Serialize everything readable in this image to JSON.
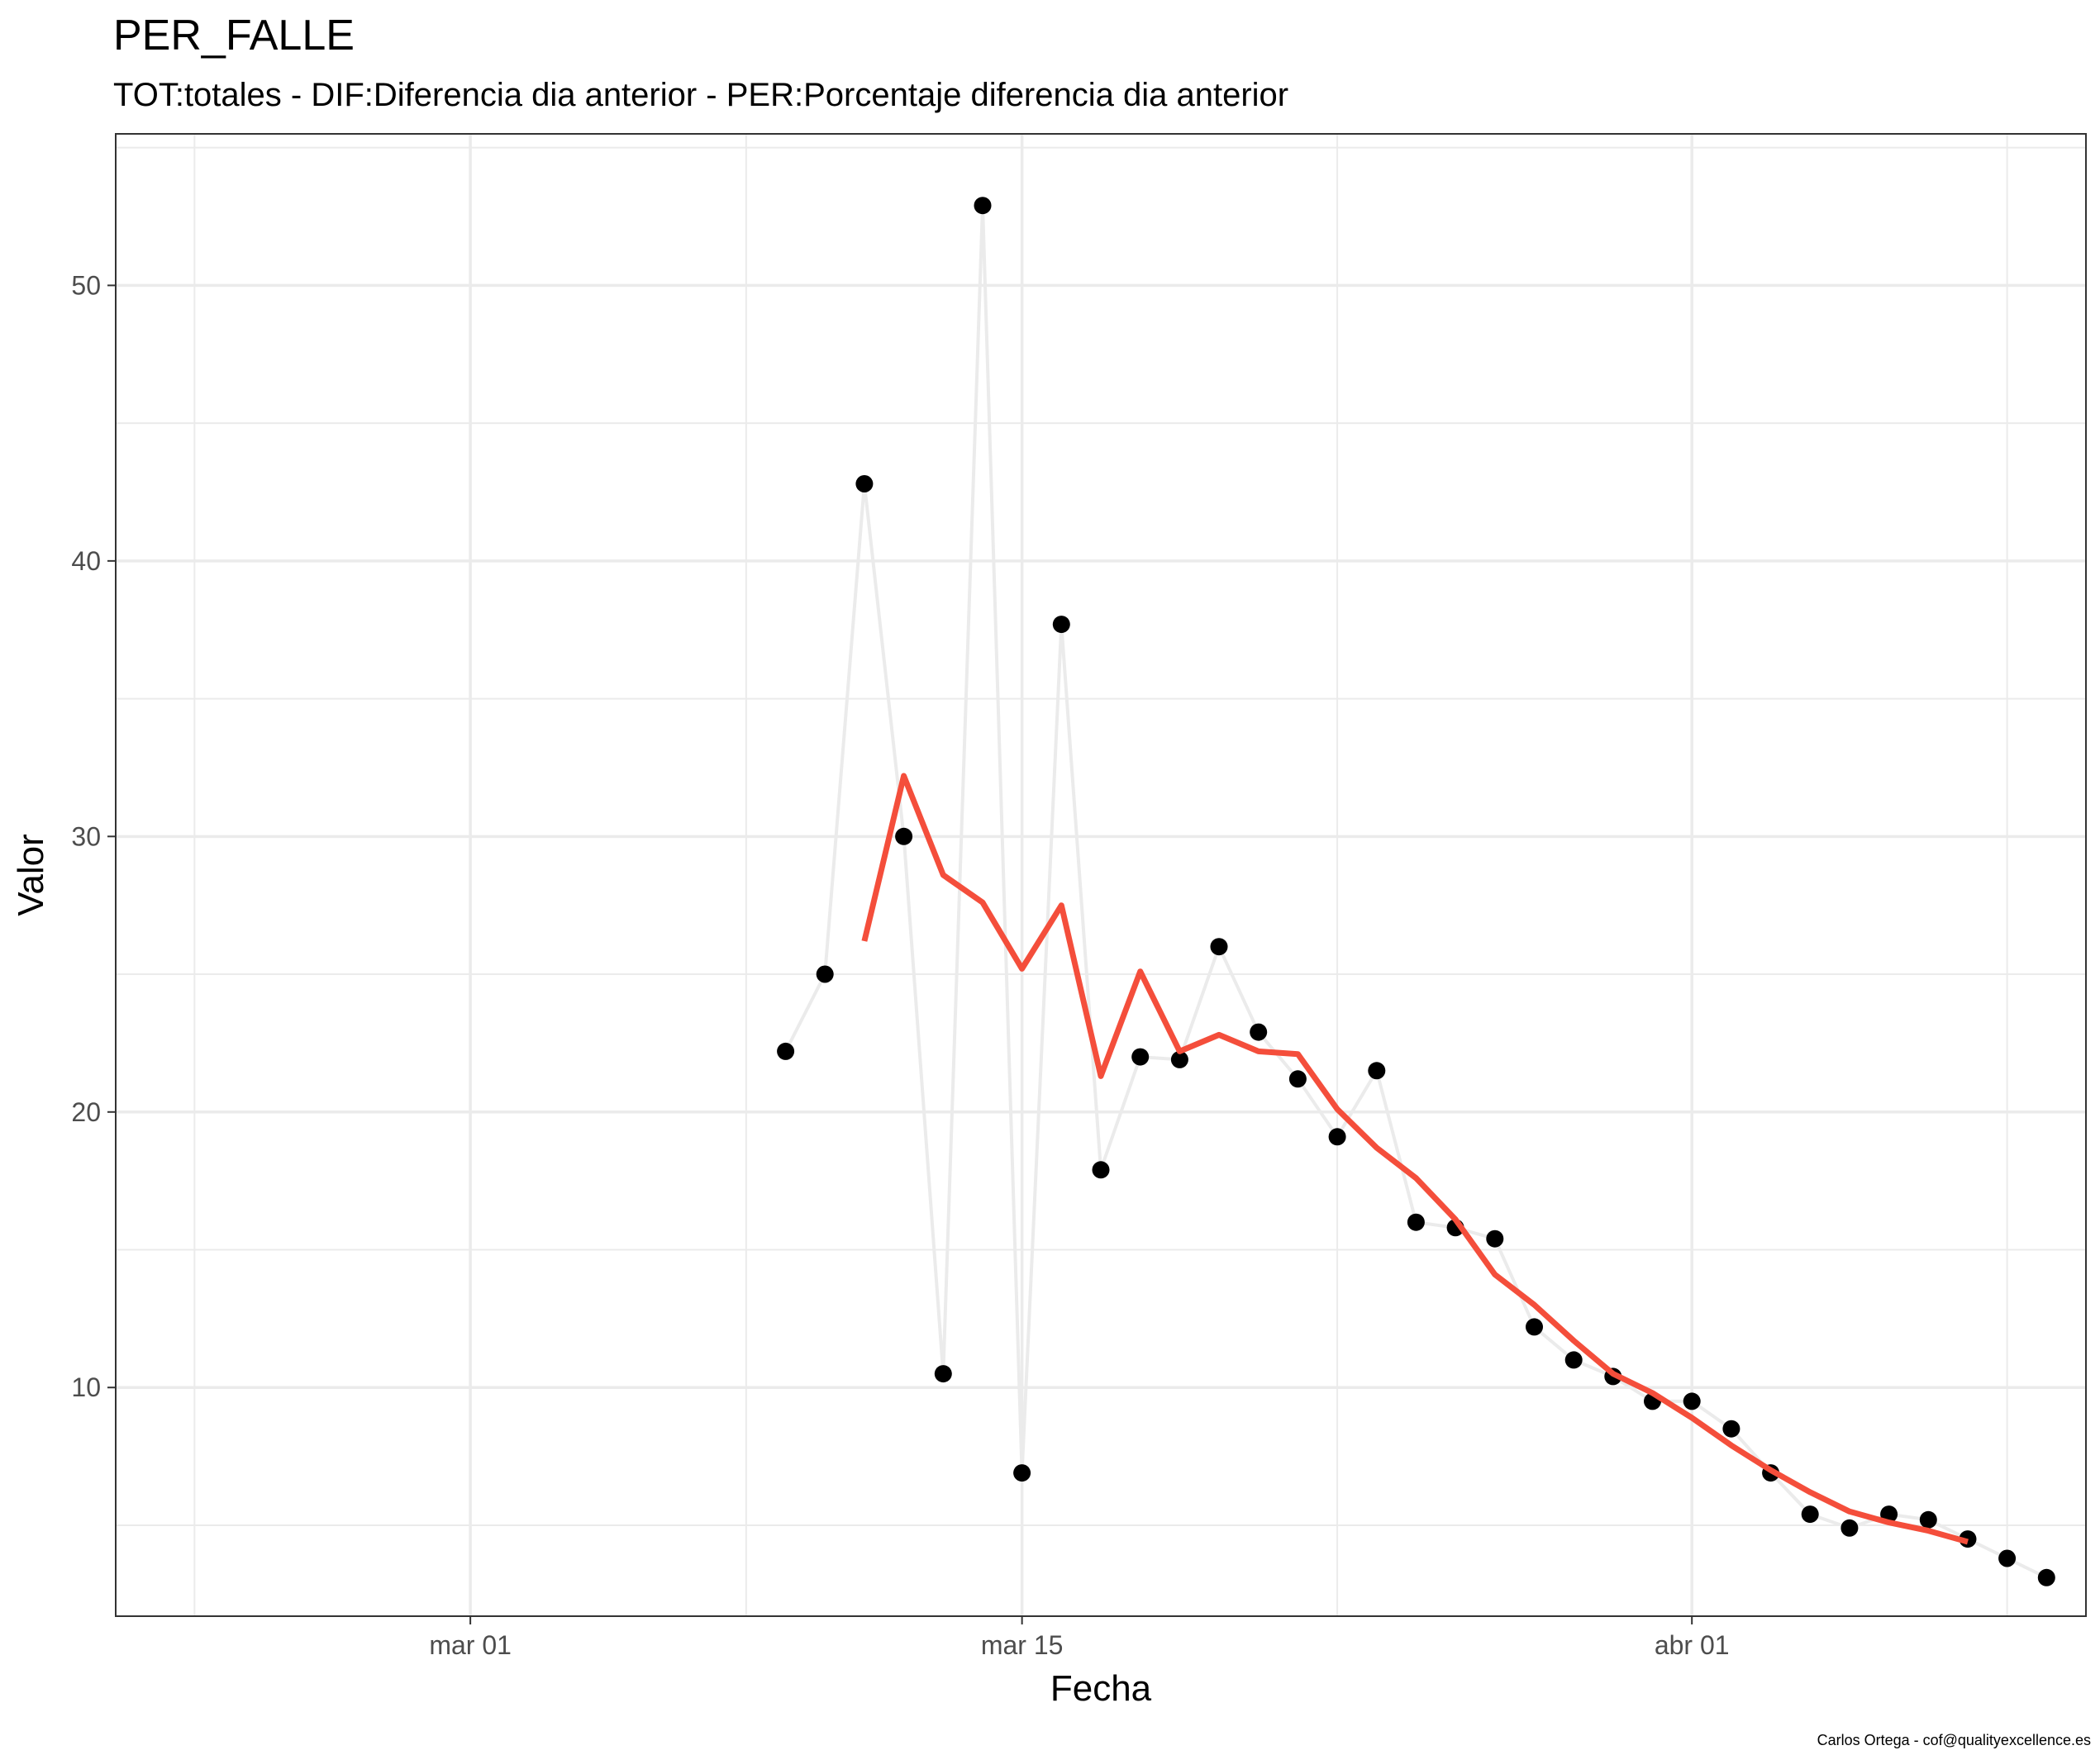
{
  "chart_data": {
    "type": "line",
    "title": "PER_FALLE",
    "subtitle": "TOT:totales - DIF:Diferencia dia anterior - PER:Porcentaje diferencia dia anterior",
    "xlabel": "Fecha",
    "ylabel": "Valor",
    "caption": "Carlos Ortega - cof@qualityexcellence.es",
    "x_range": [
      "2020-02-21",
      "2020-04-11"
    ],
    "ylim": [
      1.7,
      55.5
    ],
    "x_ticks": [
      {
        "date": "2020-03-01",
        "label": "mar 01"
      },
      {
        "date": "2020-03-15",
        "label": "mar 15"
      },
      {
        "date": "2020-04-01",
        "label": "abr 01"
      }
    ],
    "y_ticks": [
      10,
      20,
      30,
      40,
      50
    ],
    "grid": true,
    "colors": {
      "points": "#000000",
      "raw_line": "#ebebeb",
      "smooth_line": "#f44e3b",
      "grid": "#ebebeb",
      "panel_border": "#333333"
    },
    "series": [
      {
        "x": [
          "2020-03-09",
          "2020-03-10",
          "2020-03-11",
          "2020-03-12",
          "2020-03-13",
          "2020-03-14",
          "2020-03-15",
          "2020-03-16",
          "2020-03-17",
          "2020-03-18",
          "2020-03-19",
          "2020-03-20",
          "2020-03-21",
          "2020-03-22",
          "2020-03-23",
          "2020-03-24",
          "2020-03-25",
          "2020-03-26",
          "2020-03-27",
          "2020-03-28",
          "2020-03-29",
          "2020-03-30",
          "2020-03-31",
          "2020-04-01",
          "2020-04-02",
          "2020-04-03",
          "2020-04-04",
          "2020-04-05",
          "2020-04-06",
          "2020-04-07",
          "2020-04-08",
          "2020-04-09",
          "2020-04-10"
        ],
        "values": [
          22.2,
          25.0,
          42.8,
          30.0,
          10.5,
          52.9,
          6.9,
          37.7,
          17.9,
          22.0,
          21.9,
          26.0,
          22.9,
          21.2,
          19.1,
          21.5,
          16.0,
          15.8,
          15.4,
          12.2,
          11.0,
          10.4,
          9.5,
          9.5,
          8.5,
          6.9,
          5.4,
          4.9,
          5.4,
          5.2,
          4.5,
          3.8,
          3.1
        ]
      },
      {
        "x": [
          "2020-03-11",
          "2020-03-12",
          "2020-03-13",
          "2020-03-14",
          "2020-03-15",
          "2020-03-16",
          "2020-03-17",
          "2020-03-18",
          "2020-03-19",
          "2020-03-20",
          "2020-03-21",
          "2020-03-22",
          "2020-03-23",
          "2020-03-24",
          "2020-03-25",
          "2020-03-26",
          "2020-03-27",
          "2020-03-28",
          "2020-03-29",
          "2020-03-30",
          "2020-03-31",
          "2020-04-01",
          "2020-04-02",
          "2020-04-03",
          "2020-04-04",
          "2020-04-05",
          "2020-04-06",
          "2020-04-07",
          "2020-04-08"
        ],
        "values": [
          26.2,
          32.2,
          28.6,
          27.6,
          25.2,
          27.5,
          21.3,
          25.1,
          22.2,
          22.8,
          22.2,
          22.1,
          20.1,
          18.7,
          17.6,
          16.1,
          14.1,
          13.0,
          11.7,
          10.5,
          9.8,
          8.9,
          7.9,
          7.0,
          6.2,
          5.5,
          5.1,
          4.8,
          4.4
        ]
      }
    ]
  }
}
